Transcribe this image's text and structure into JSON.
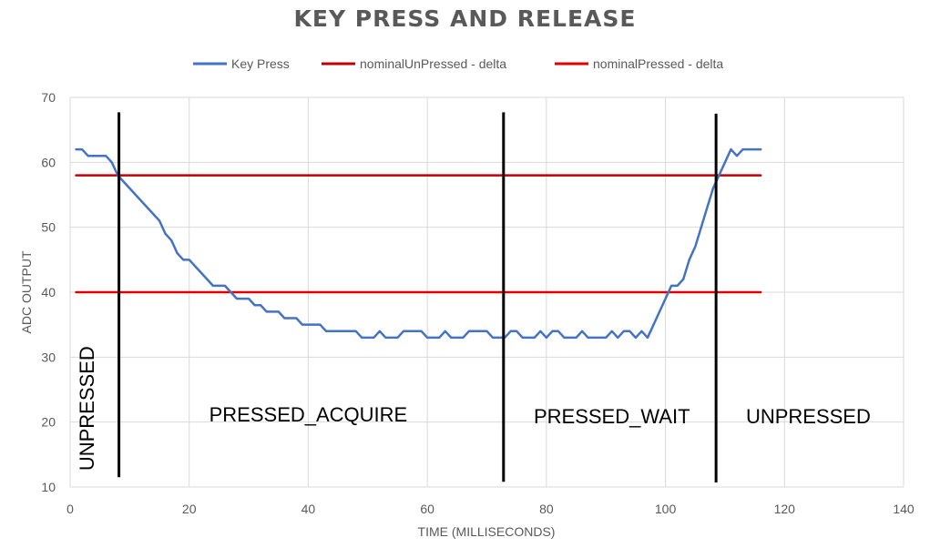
{
  "chart_data": {
    "type": "line",
    "title": "KEY PRESS AND RELEASE",
    "xlabel": "TIME (MILLISECONDS)",
    "ylabel": "ADC OUTPUT",
    "xlim": [
      0,
      140
    ],
    "ylim": [
      10,
      70
    ],
    "xticks": [
      0,
      20,
      40,
      60,
      80,
      100,
      120,
      140
    ],
    "yticks": [
      10,
      20,
      30,
      40,
      50,
      60,
      70
    ],
    "grid": true,
    "legend_position": "top",
    "series": [
      {
        "name": "Key Press",
        "color": "#4472C4",
        "x": [
          1,
          2,
          3,
          4,
          5,
          6,
          7,
          8,
          9,
          10,
          11,
          12,
          13,
          14,
          15,
          16,
          17,
          18,
          19,
          20,
          21,
          22,
          23,
          24,
          25,
          26,
          27,
          28,
          29,
          30,
          31,
          32,
          33,
          34,
          35,
          36,
          37,
          38,
          39,
          40,
          41,
          42,
          43,
          44,
          45,
          46,
          47,
          48,
          49,
          50,
          51,
          52,
          53,
          54,
          55,
          56,
          57,
          58,
          59,
          60,
          61,
          62,
          63,
          64,
          65,
          66,
          67,
          68,
          69,
          70,
          71,
          72,
          73,
          74,
          75,
          76,
          77,
          78,
          79,
          80,
          81,
          82,
          83,
          84,
          85,
          86,
          87,
          88,
          89,
          90,
          91,
          92,
          93,
          94,
          95,
          96,
          97,
          98,
          99,
          100,
          101,
          102,
          103,
          104,
          105,
          106,
          107,
          108,
          109,
          110,
          111,
          112,
          113,
          114,
          115,
          116
        ],
        "y": [
          62,
          62,
          61,
          61,
          61,
          61,
          60,
          58,
          57,
          56,
          55,
          54,
          53,
          52,
          51,
          49,
          48,
          46,
          45,
          45,
          44,
          43,
          42,
          41,
          41,
          41,
          40,
          39,
          39,
          39,
          38,
          38,
          37,
          37,
          37,
          36,
          36,
          36,
          35,
          35,
          35,
          35,
          34,
          34,
          34,
          34,
          34,
          34,
          33,
          33,
          33,
          34,
          33,
          33,
          33,
          34,
          34,
          34,
          34,
          33,
          33,
          33,
          34,
          33,
          33,
          33,
          34,
          34,
          34,
          34,
          33,
          33,
          33,
          34,
          34,
          33,
          33,
          33,
          34,
          33,
          34,
          34,
          33,
          33,
          33,
          34,
          33,
          33,
          33,
          33,
          34,
          33,
          34,
          34,
          33,
          34,
          33,
          35,
          37,
          39,
          41,
          41,
          42,
          45,
          47,
          50,
          53,
          56,
          58,
          60,
          62,
          61,
          62,
          62,
          62,
          62
        ]
      },
      {
        "name": "nominalUnPressed - delta",
        "color": "#C00000",
        "x": [
          1,
          116
        ],
        "y": [
          58,
          58
        ]
      },
      {
        "name": "nominalPressed - delta",
        "color": "#E00000",
        "x": [
          1,
          116
        ],
        "y": [
          40,
          40
        ]
      }
    ],
    "markers": [
      {
        "x": 8.2,
        "y_top": 67.7,
        "y_bottom": 11.5
      },
      {
        "x": 72.8,
        "y_top": 67.7,
        "y_bottom": 10.8
      },
      {
        "x": 108.5,
        "y_top": 67.5,
        "y_bottom": 10.7
      }
    ],
    "annotations": [
      {
        "text": "UNPRESSED",
        "x": 4,
        "y": 12.5,
        "rotation": -90
      },
      {
        "text": "PRESSED_ACQUIRE",
        "x": 40,
        "y": 20.1
      },
      {
        "text": "PRESSED_WAIT",
        "x": 91,
        "y": 19.8
      },
      {
        "text": "UNPRESSED",
        "x": 124,
        "y": 19.8
      }
    ]
  }
}
